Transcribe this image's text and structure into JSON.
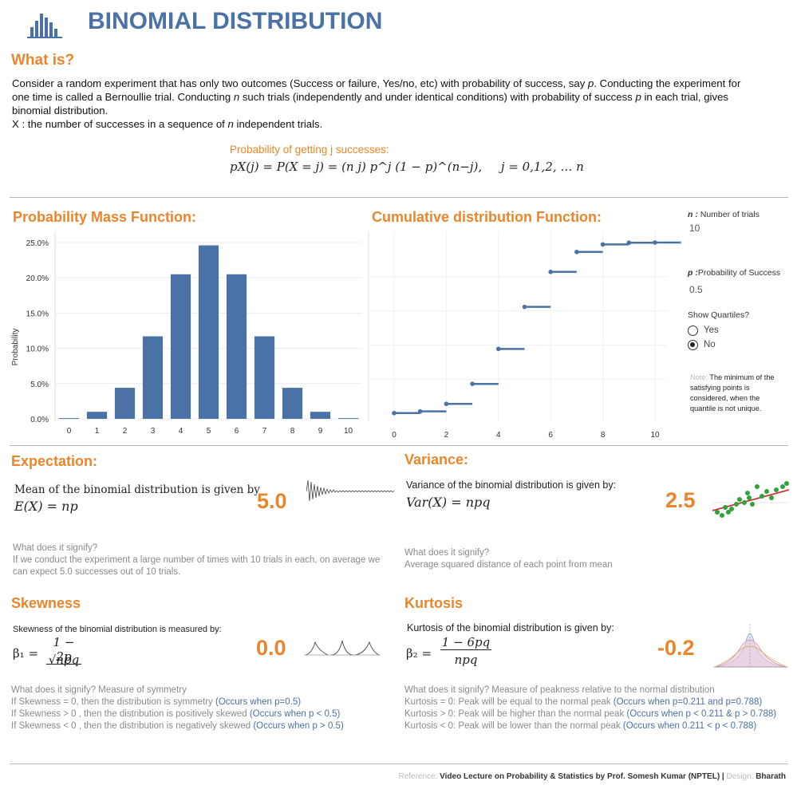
{
  "header": {
    "title": "BINOMIAL DISTRIBUTION",
    "logo_icon": "bar-chart-logo-icon"
  },
  "what_is": {
    "heading": "What is?",
    "line1a": "Consider a random experiment that has only two outcomes (Success or failure, Yes/no, etc) with probability of success, say ",
    "line1b": "p",
    "line1c": ". Conducting the experiment for",
    "line2a": "one time is called a Bernoullie trial. Conducting ",
    "line2b": "n",
    "line2c": " such trials (independently and under identical conditions) with probability of success ",
    "line2d": "p",
    "line2e": " in each trial, gives",
    "line3": "binomial distribution.",
    "line4a": "X : the number of successes in a sequence of ",
    "line4b": "n",
    "line4c": " independent trials.",
    "prob_label": "Probability of getting j successes:",
    "formula": "pX(j) = P(X = j) = (n j) p^j (1 − p)^(n−j),     j = 0,1,2, … n"
  },
  "pmf": {
    "heading": "Probability Mass Function:",
    "ylabel": "Probability"
  },
  "cdf": {
    "heading": "Cumulative distribution Function:"
  },
  "controls": {
    "n_label_bold": "n :",
    "n_label": "Number of trials",
    "n_value": "10",
    "p_label_bold": "p :",
    "p_label": "Probability of Success",
    "p_value": "0.5",
    "quartiles_label": "Show Quartiles?",
    "opt_yes": "Yes",
    "opt_no": "No",
    "selected": "No",
    "note_prefix": "Note:",
    "note": "The minimum of the satisfying points is considered, when the quantile is not unique."
  },
  "chart_data": [
    {
      "type": "bar",
      "title": "Probability Mass Function:",
      "ylabel": "Probability",
      "categories": [
        "0",
        "1",
        "2",
        "3",
        "4",
        "5",
        "6",
        "7",
        "8",
        "9",
        "10"
      ],
      "values": [
        0.001,
        0.01,
        0.044,
        0.117,
        0.205,
        0.246,
        0.205,
        0.117,
        0.044,
        0.01,
        0.001
      ],
      "yticks": [
        "0.0%",
        "5.0%",
        "10.0%",
        "15.0%",
        "20.0%",
        "25.0%"
      ],
      "ylim": [
        0,
        0.25
      ],
      "color": "#4a72a6"
    },
    {
      "type": "line",
      "title": "Cumulative distribution Function:",
      "x": [
        0,
        1,
        2,
        3,
        4,
        5,
        6,
        7,
        8,
        9,
        10
      ],
      "y": [
        0.001,
        0.011,
        0.055,
        0.172,
        0.377,
        0.623,
        0.828,
        0.945,
        0.989,
        0.999,
        1.0
      ],
      "xticks": [
        "0",
        "2",
        "4",
        "6",
        "8",
        "10"
      ],
      "ylim": [
        0,
        1
      ],
      "color": "#4a72a6"
    }
  ],
  "expectation": {
    "heading": "Expectation:",
    "desc": "Mean of the binomial distribution is given by",
    "formula": "E(X) = np",
    "value": "5.0",
    "signify_q": "What does it signify?",
    "signify_a": "If we conduct the experiment a large number of times with 10 trials in each, on average we can expect 5.0 successes out of 10 trials."
  },
  "variance": {
    "heading": "Variance:",
    "desc": "Variance of the binomial distribution is given by:",
    "formula": "Var(X) = npq",
    "value": "2.5",
    "signify_q": "What does it signify?",
    "signify_a": "Average squared distance of each point from mean"
  },
  "skewness": {
    "heading": "Skewness",
    "desc": "Skewness of the binomial distribution is measured by:",
    "lhs": "β₁ =",
    "num": "1 − 2p",
    "den": "√npq",
    "value": "0.0",
    "q": "What does it signify?  Measure of symmetry",
    "l1a": "If Skewness = 0, then the distribution is symmetry ",
    "l1b": "(Occurs when p=0.5)",
    "l2a": "If Skewness > 0 , then the distribution is positively skewed ",
    "l2b": "(Occurs when p < 0.5)",
    "l3a": "If Skewness < 0 , then the distribution is negatively skewed ",
    "l3b": "(Occurs when p > 0.5)"
  },
  "kurtosis": {
    "heading": "Kurtosis",
    "desc": "Kurtosis of the binomial distribution is given by:",
    "lhs": "β₂ =",
    "num": "1 − 6pq",
    "den": "npq",
    "value": "-0.2",
    "q": "What does it signify?  Measure of peakness relative to the normal distribution",
    "l1a": "Kurtosis = 0: Peak will be equal to the normal peak ",
    "l1b": "(Occurs when p=0.211 and p=0.788)",
    "l2a": "Kurtosis > 0: Peak will be higher than the normal peak ",
    "l2b": "(Occurs when p < 0.211 & p > 0.788)",
    "l3a": "Kurtosis < 0: Peak will be lower than the normal peak ",
    "l3b": "(Occurs when 0.211 < p < 0.788)"
  },
  "footer": {
    "ref_label": "Reference:",
    "ref": "Video Lecture on Probability & Statistics by Prof. Somesh Kumar (NPTEL)",
    "sep": " | ",
    "design_label": "Design:",
    "design": "Bharath"
  }
}
